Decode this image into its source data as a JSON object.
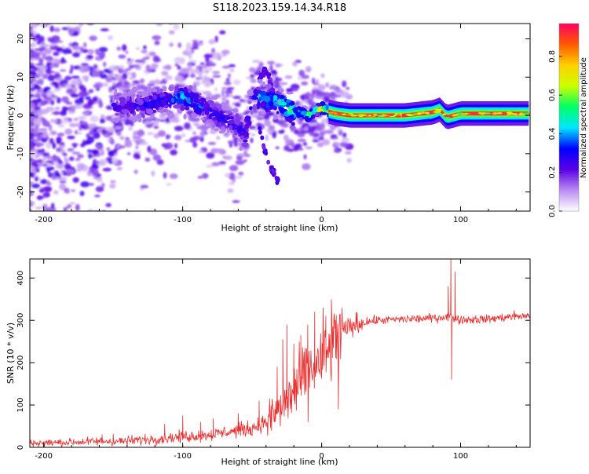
{
  "title": "S118.2023.159.14.34.R18",
  "chart_data": [
    {
      "type": "heatmap",
      "xlabel": "Height of straight line (km)",
      "ylabel": "Frequency (Hz)",
      "xlim": [
        -210,
        150
      ],
      "ylim": [
        -25,
        24
      ],
      "xticks": [
        -200,
        -100,
        0,
        100
      ],
      "yticks": [
        20,
        10,
        0,
        -10,
        -20
      ],
      "colorbar": {
        "label": "Normalized spectral amplitude",
        "range": [
          0,
          0.97
        ],
        "ticks": [
          0.0,
          0.2,
          0.4,
          0.6,
          0.8
        ],
        "colors": [
          "#ffffff",
          "#b98cf0",
          "#5a00e6",
          "#0000ff",
          "#00e6ff",
          "#00ff66",
          "#ccff00",
          "#ffd000",
          "#ff5a00",
          "#ff0060"
        ]
      },
      "ridge": {
        "x": [
          -150,
          -130,
          -110,
          -100,
          -90,
          -80,
          -70,
          -60,
          -55,
          -50,
          -45,
          -40,
          -35,
          -30,
          -25,
          -20,
          -15,
          -10,
          -5,
          0,
          5,
          10,
          20,
          40,
          60,
          80,
          85,
          90,
          100,
          120,
          150
        ],
        "y": [
          2,
          2.5,
          4,
          5,
          3,
          1,
          -1,
          -3,
          -5,
          4,
          5,
          4,
          4,
          3,
          2,
          0.5,
          1,
          0,
          1,
          2,
          1,
          0.5,
          0,
          0,
          0,
          0.8,
          1.5,
          -0.5,
          0.5,
          0.5,
          0.5
        ],
        "amplitude": [
          0.25,
          0.3,
          0.35,
          0.4,
          0.35,
          0.3,
          0.3,
          0.3,
          0.3,
          0.35,
          0.4,
          0.4,
          0.45,
          0.5,
          0.55,
          0.55,
          0.6,
          0.6,
          0.6,
          0.7,
          0.65,
          0.75,
          0.95,
          0.95,
          0.95,
          0.9,
          0.85,
          0.7,
          0.75,
          0.75,
          0.7
        ]
      },
      "branches": [
        {
          "x": [
            -45,
            -40,
            -35,
            -30
          ],
          "y": [
            -3,
            -10,
            -15,
            -18
          ]
        },
        {
          "x": [
            -45,
            -40,
            -35
          ],
          "y": [
            10,
            12,
            6
          ]
        }
      ]
    },
    {
      "type": "line",
      "xlabel": "Height of straight line (km)",
      "ylabel": "SNR (10 * v/v)",
      "xlim": [
        -210,
        150
      ],
      "ylim": [
        0,
        445
      ],
      "xticks": [
        -200,
        -100,
        0,
        100
      ],
      "yticks": [
        0,
        100,
        200,
        300,
        400
      ],
      "color": "#ee2c2c",
      "series": [
        {
          "x": [
            -210,
            -180,
            -160,
            -140,
            -120,
            -100,
            -80,
            -60,
            -50,
            -40,
            -30,
            -25,
            -20,
            -15,
            -10,
            -5,
            0,
            5,
            10,
            15,
            20,
            30,
            40,
            60,
            80,
            88,
            92,
            95,
            100,
            120,
            140,
            150
          ],
          "y": [
            10,
            12,
            14,
            15,
            20,
            25,
            30,
            40,
            45,
            60,
            90,
            110,
            130,
            150,
            170,
            190,
            205,
            225,
            250,
            270,
            285,
            295,
            300,
            303,
            305,
            308,
            310,
            305,
            302,
            303,
            310,
            310
          ]
        }
      ],
      "spikes": [
        {
          "x": -158,
          "y": 30
        },
        {
          "x": -150,
          "y": 32
        },
        {
          "x": -113,
          "y": 55
        },
        {
          "x": -100,
          "y": 75
        },
        {
          "x": -87,
          "y": 60
        },
        {
          "x": -78,
          "y": 68
        },
        {
          "x": -60,
          "y": 80
        },
        {
          "x": -45,
          "y": 110
        },
        {
          "x": -32,
          "y": 190
        },
        {
          "x": -28,
          "y": 255
        },
        {
          "x": -25,
          "y": 290
        },
        {
          "x": -20,
          "y": 245
        },
        {
          "x": -15,
          "y": 265
        },
        {
          "x": -10,
          "y": 290
        },
        {
          "x": -5,
          "y": 320
        },
        {
          "x": 3,
          "y": 310
        },
        {
          "x": 7,
          "y": 350
        },
        {
          "x": 12,
          "y": 90
        },
        {
          "x": 93,
          "y": 445
        },
        {
          "x": 93.5,
          "y": 160
        },
        {
          "x": 96,
          "y": 415
        },
        {
          "x": 91,
          "y": 380
        }
      ]
    }
  ]
}
